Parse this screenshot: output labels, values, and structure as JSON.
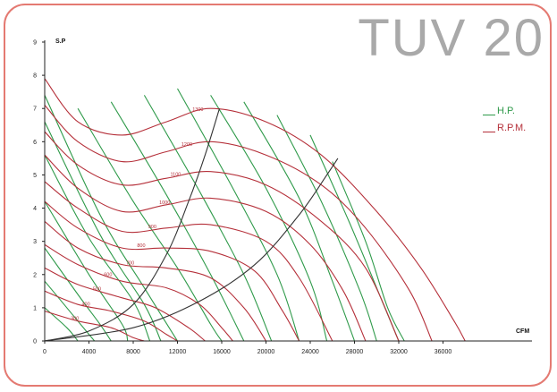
{
  "title": "TUV  20",
  "legend": {
    "hp": {
      "label": "H.P.",
      "color": "#2f9a4a"
    },
    "rpm": {
      "label": "R.P.M.",
      "color": "#b5303a"
    }
  },
  "colors": {
    "frame": "#e47a72",
    "axis": "#222222",
    "system_curve": "#333333"
  },
  "chart_data": {
    "type": "line",
    "title": "TUV  20",
    "xlabel": "CFM",
    "ylabel": "S.P",
    "xlim": [
      0,
      40000
    ],
    "ylim": [
      0,
      9
    ],
    "x_ticks": [
      "0",
      "4000",
      "8000",
      "12000",
      "16000",
      "20000",
      "24000",
      "28000",
      "32000",
      "36000"
    ],
    "y_ticks": [
      "0",
      "1",
      "2",
      "3",
      "4",
      "5",
      "6",
      "7",
      "8",
      "9"
    ],
    "rpm_series": [
      {
        "name": "1300",
        "label_x": 14000,
        "points": [
          [
            0,
            7.9
          ],
          [
            3000,
            6.6
          ],
          [
            7000,
            6.2
          ],
          [
            11000,
            6.6
          ],
          [
            15000,
            7.0
          ],
          [
            20000,
            6.6
          ],
          [
            25000,
            5.6
          ],
          [
            30000,
            3.9
          ],
          [
            34000,
            2.2
          ],
          [
            37000,
            0.6
          ],
          [
            38000,
            0
          ]
        ]
      },
      {
        "name": "1200",
        "label_x": 13000,
        "points": [
          [
            0,
            7.1
          ],
          [
            3000,
            6.0
          ],
          [
            7000,
            5.4
          ],
          [
            11000,
            5.7
          ],
          [
            15000,
            6.0
          ],
          [
            20000,
            5.6
          ],
          [
            25000,
            4.7
          ],
          [
            29000,
            3.4
          ],
          [
            33000,
            1.5
          ],
          [
            35000,
            0
          ]
        ]
      },
      {
        "name": "1100",
        "label_x": 12000,
        "points": [
          [
            0,
            6.3
          ],
          [
            3000,
            5.3
          ],
          [
            7000,
            4.7
          ],
          [
            11000,
            4.9
          ],
          [
            15000,
            5.1
          ],
          [
            20000,
            4.7
          ],
          [
            25000,
            3.6
          ],
          [
            29000,
            2.2
          ],
          [
            32000,
            0
          ]
        ]
      },
      {
        "name": "1000",
        "label_x": 11000,
        "points": [
          [
            0,
            5.6
          ],
          [
            3000,
            4.6
          ],
          [
            7000,
            3.9
          ],
          [
            11000,
            4.1
          ],
          [
            15000,
            4.3
          ],
          [
            20000,
            3.9
          ],
          [
            24000,
            2.9
          ],
          [
            27000,
            1.5
          ],
          [
            29000,
            0
          ]
        ]
      },
      {
        "name": "900",
        "label_x": 10000,
        "points": [
          [
            0,
            4.8
          ],
          [
            3000,
            4.0
          ],
          [
            7000,
            3.3
          ],
          [
            11000,
            3.4
          ],
          [
            15000,
            3.5
          ],
          [
            20000,
            3.0
          ],
          [
            23000,
            1.9
          ],
          [
            26000,
            0
          ]
        ]
      },
      {
        "name": "800",
        "label_x": 9000,
        "points": [
          [
            0,
            4.2
          ],
          [
            3000,
            3.4
          ],
          [
            7000,
            2.8
          ],
          [
            11000,
            2.8
          ],
          [
            15000,
            2.7
          ],
          [
            19000,
            2.1
          ],
          [
            21500,
            0.9
          ],
          [
            23000,
            0
          ]
        ]
      },
      {
        "name": "700",
        "label_x": 8000,
        "points": [
          [
            0,
            3.6
          ],
          [
            3000,
            2.8
          ],
          [
            7000,
            2.3
          ],
          [
            11000,
            2.2
          ],
          [
            15000,
            1.9
          ],
          [
            18000,
            1.0
          ],
          [
            20000,
            0
          ]
        ]
      },
      {
        "name": "600",
        "label_x": 6000,
        "points": [
          [
            0,
            2.9
          ],
          [
            3000,
            2.3
          ],
          [
            7000,
            1.8
          ],
          [
            11000,
            1.6
          ],
          [
            14000,
            1.1
          ],
          [
            16000,
            0.4
          ],
          [
            17000,
            0
          ]
        ]
      },
      {
        "name": "500",
        "label_x": 5000,
        "points": [
          [
            0,
            2.2
          ],
          [
            3000,
            1.7
          ],
          [
            7000,
            1.3
          ],
          [
            10000,
            1.0
          ],
          [
            13000,
            0.4
          ],
          [
            14500,
            0
          ]
        ]
      },
      {
        "name": "400",
        "label_x": 4000,
        "points": [
          [
            0,
            1.5
          ],
          [
            3000,
            1.1
          ],
          [
            6000,
            0.9
          ],
          [
            9000,
            0.6
          ],
          [
            11000,
            0.2
          ],
          [
            12000,
            0
          ]
        ]
      },
      {
        "name": "300",
        "label_x": 3000,
        "points": [
          [
            0,
            0.9
          ],
          [
            3000,
            0.6
          ],
          [
            6000,
            0.4
          ],
          [
            8000,
            0.1
          ],
          [
            9000,
            0
          ]
        ]
      }
    ],
    "hp_series": [
      {
        "name": "",
        "points": [
          [
            0,
            7.4
          ],
          [
            5000,
            3.8
          ],
          [
            9000,
            1.6
          ],
          [
            12000,
            0
          ]
        ]
      },
      {
        "name": "",
        "points": [
          [
            0,
            6.6
          ],
          [
            5000,
            3.2
          ],
          [
            9000,
            1.1
          ],
          [
            10500,
            0
          ]
        ]
      },
      {
        "name": "",
        "points": [
          [
            0,
            5.6
          ],
          [
            4000,
            3.1
          ],
          [
            8000,
            1.2
          ],
          [
            9500,
            0
          ]
        ]
      },
      {
        "name": "",
        "points": [
          [
            0,
            4.2
          ],
          [
            4000,
            2.0
          ],
          [
            7000,
            0.5
          ],
          [
            7500,
            0
          ]
        ]
      },
      {
        "name": "",
        "points": [
          [
            0,
            2.8
          ],
          [
            3000,
            1.4
          ],
          [
            5000,
            0.5
          ],
          [
            6000,
            0
          ]
        ]
      },
      {
        "name": "",
        "points": [
          [
            0,
            1.8
          ],
          [
            2500,
            0.8
          ],
          [
            4000,
            0.2
          ],
          [
            4500,
            0
          ]
        ]
      },
      {
        "name": "",
        "points": [
          [
            0,
            1.0
          ],
          [
            2000,
            0.4
          ],
          [
            3000,
            0
          ]
        ]
      },
      {
        "name": "",
        "points": [
          [
            3000,
            7.0
          ],
          [
            8000,
            4.2
          ],
          [
            12000,
            2.2
          ],
          [
            15000,
            0.5
          ],
          [
            16000,
            0
          ]
        ]
      },
      {
        "name": "",
        "points": [
          [
            6000,
            7.2
          ],
          [
            11000,
            4.4
          ],
          [
            15000,
            2.0
          ],
          [
            18000,
            0
          ]
        ]
      },
      {
        "name": "",
        "points": [
          [
            9000,
            7.4
          ],
          [
            14000,
            4.5
          ],
          [
            18000,
            2.0
          ],
          [
            20500,
            0
          ]
        ]
      },
      {
        "name": "",
        "points": [
          [
            12000,
            7.6
          ],
          [
            17000,
            4.6
          ],
          [
            21000,
            2.0
          ],
          [
            23000,
            0
          ]
        ]
      },
      {
        "name": "",
        "points": [
          [
            15000,
            7.4
          ],
          [
            20000,
            4.6
          ],
          [
            24000,
            1.8
          ],
          [
            25500,
            0
          ]
        ]
      },
      {
        "name": "",
        "points": [
          [
            18000,
            7.2
          ],
          [
            23000,
            4.3
          ],
          [
            26000,
            1.8
          ],
          [
            28000,
            0
          ]
        ]
      },
      {
        "name": "",
        "points": [
          [
            21000,
            6.8
          ],
          [
            25000,
            4.2
          ],
          [
            28500,
            1.5
          ],
          [
            30000,
            0
          ]
        ]
      },
      {
        "name": "",
        "points": [
          [
            24000,
            6.2
          ],
          [
            27500,
            3.6
          ],
          [
            30500,
            1.2
          ],
          [
            32000,
            0
          ]
        ]
      },
      {
        "name": "",
        "points": [
          [
            26000,
            5.4
          ],
          [
            29000,
            3.0
          ],
          [
            31000,
            1.0
          ],
          [
            32500,
            0
          ]
        ]
      }
    ],
    "system_curves": [
      {
        "points": [
          [
            0,
            0
          ],
          [
            4000,
            0.3
          ],
          [
            8000,
            1.1
          ],
          [
            11000,
            2.6
          ],
          [
            13000,
            4.2
          ],
          [
            14500,
            5.6
          ],
          [
            15800,
            7.0
          ]
        ]
      },
      {
        "points": [
          [
            0,
            0
          ],
          [
            8000,
            0.4
          ],
          [
            14000,
            1.2
          ],
          [
            19000,
            2.3
          ],
          [
            23000,
            3.8
          ],
          [
            25500,
            5.0
          ],
          [
            26500,
            5.5
          ]
        ]
      }
    ]
  }
}
